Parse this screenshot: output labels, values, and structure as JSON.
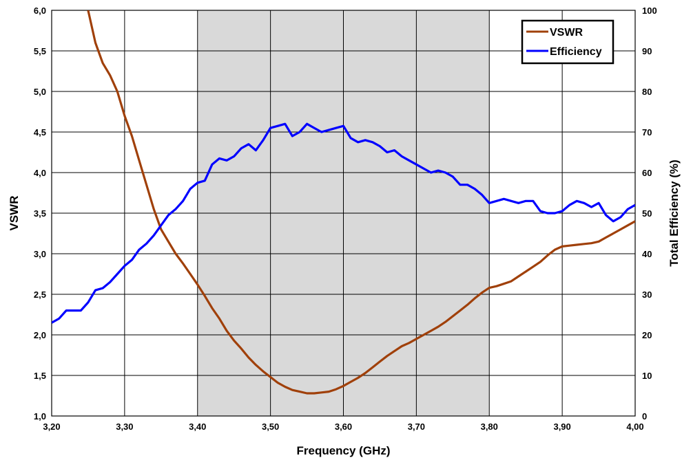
{
  "chart_data": {
    "type": "line",
    "xlabel": "Frequency (GHz)",
    "ylabel": "VSWR",
    "y2label": "Total Efficiency (%)",
    "xlim": [
      3.2,
      4.0
    ],
    "ylim": [
      1.0,
      6.0
    ],
    "y2lim": [
      0,
      100
    ],
    "x_ticks": [
      "3,20",
      "3,30",
      "3,40",
      "3,50",
      "3,60",
      "3,70",
      "3,80",
      "3,90",
      "4,00"
    ],
    "y_ticks": [
      "1,0",
      "1,5",
      "2,0",
      "2,5",
      "3,0",
      "3,5",
      "4,0",
      "4,5",
      "5,0",
      "5,5",
      "6,0"
    ],
    "y2_ticks": [
      "0",
      "10",
      "20",
      "30",
      "40",
      "50",
      "60",
      "70",
      "80",
      "90",
      "100"
    ],
    "grid": true,
    "shaded_band": [
      3.4,
      3.8
    ],
    "legend_position": "top-right",
    "colors": {
      "vswr": "#a0400a",
      "efficiency": "#0000ff",
      "band": "#d9d9d9"
    },
    "series": [
      {
        "name": "VSWR",
        "axis": "left",
        "x": [
          3.25,
          3.26,
          3.27,
          3.28,
          3.29,
          3.3,
          3.31,
          3.32,
          3.33,
          3.34,
          3.35,
          3.36,
          3.37,
          3.38,
          3.39,
          3.4,
          3.41,
          3.42,
          3.43,
          3.44,
          3.45,
          3.46,
          3.47,
          3.48,
          3.49,
          3.5,
          3.51,
          3.52,
          3.53,
          3.54,
          3.55,
          3.56,
          3.57,
          3.58,
          3.59,
          3.6,
          3.61,
          3.62,
          3.63,
          3.64,
          3.65,
          3.66,
          3.67,
          3.68,
          3.69,
          3.7,
          3.71,
          3.72,
          3.73,
          3.74,
          3.75,
          3.76,
          3.77,
          3.78,
          3.79,
          3.8,
          3.81,
          3.82,
          3.83,
          3.84,
          3.85,
          3.86,
          3.87,
          3.88,
          3.89,
          3.9,
          3.91,
          3.92,
          3.93,
          3.94,
          3.95,
          3.96,
          3.97,
          3.98,
          3.99,
          4.0
        ],
        "values": [
          6.0,
          5.6,
          5.35,
          5.2,
          5.0,
          4.7,
          4.45,
          4.15,
          3.85,
          3.55,
          3.3,
          3.15,
          3.0,
          2.88,
          2.75,
          2.62,
          2.48,
          2.33,
          2.2,
          2.05,
          1.93,
          1.83,
          1.72,
          1.63,
          1.55,
          1.48,
          1.41,
          1.36,
          1.32,
          1.3,
          1.28,
          1.28,
          1.29,
          1.3,
          1.33,
          1.37,
          1.42,
          1.47,
          1.53,
          1.6,
          1.67,
          1.74,
          1.8,
          1.86,
          1.9,
          1.95,
          2.0,
          2.05,
          2.1,
          2.16,
          2.23,
          2.3,
          2.37,
          2.45,
          2.52,
          2.58,
          2.6,
          2.63,
          2.66,
          2.72,
          2.78,
          2.84,
          2.9,
          2.98,
          3.05,
          3.09,
          3.1,
          3.11,
          3.12,
          3.13,
          3.15,
          3.2,
          3.25,
          3.3,
          3.35,
          3.4
        ]
      },
      {
        "name": "Efficiency",
        "axis": "right",
        "x": [
          3.2,
          3.21,
          3.22,
          3.23,
          3.24,
          3.25,
          3.26,
          3.27,
          3.28,
          3.29,
          3.3,
          3.31,
          3.32,
          3.33,
          3.34,
          3.35,
          3.36,
          3.37,
          3.38,
          3.39,
          3.4,
          3.41,
          3.42,
          3.43,
          3.44,
          3.45,
          3.46,
          3.47,
          3.48,
          3.49,
          3.5,
          3.51,
          3.52,
          3.53,
          3.54,
          3.55,
          3.56,
          3.57,
          3.58,
          3.59,
          3.6,
          3.61,
          3.62,
          3.63,
          3.64,
          3.65,
          3.66,
          3.67,
          3.68,
          3.69,
          3.7,
          3.71,
          3.72,
          3.73,
          3.74,
          3.75,
          3.76,
          3.77,
          3.78,
          3.79,
          3.8,
          3.81,
          3.82,
          3.83,
          3.84,
          3.85,
          3.86,
          3.87,
          3.88,
          3.89,
          3.9,
          3.91,
          3.92,
          3.93,
          3.94,
          3.95,
          3.96,
          3.97,
          3.98,
          3.99,
          4.0
        ],
        "values": [
          23,
          24,
          26,
          26,
          26,
          28,
          31,
          31.5,
          33,
          35,
          37,
          38.5,
          41,
          42.5,
          44.5,
          47,
          49.5,
          51,
          53,
          56,
          57.5,
          58,
          62,
          63.5,
          63,
          64,
          66,
          67,
          65.5,
          68,
          71,
          71.5,
          72,
          69,
          70,
          72,
          71,
          70,
          70.5,
          71,
          71.5,
          68.5,
          67.5,
          68,
          67.5,
          66.5,
          65,
          65.5,
          64,
          63,
          62,
          61,
          60,
          60.5,
          60,
          59,
          57,
          57,
          56,
          54.5,
          52.5,
          53,
          53.5,
          53,
          52.5,
          53,
          53,
          50.5,
          50,
          50,
          50.5,
          52,
          53,
          52.5,
          51.5,
          52.5,
          49.5,
          48,
          49,
          51,
          52
        ]
      }
    ]
  }
}
